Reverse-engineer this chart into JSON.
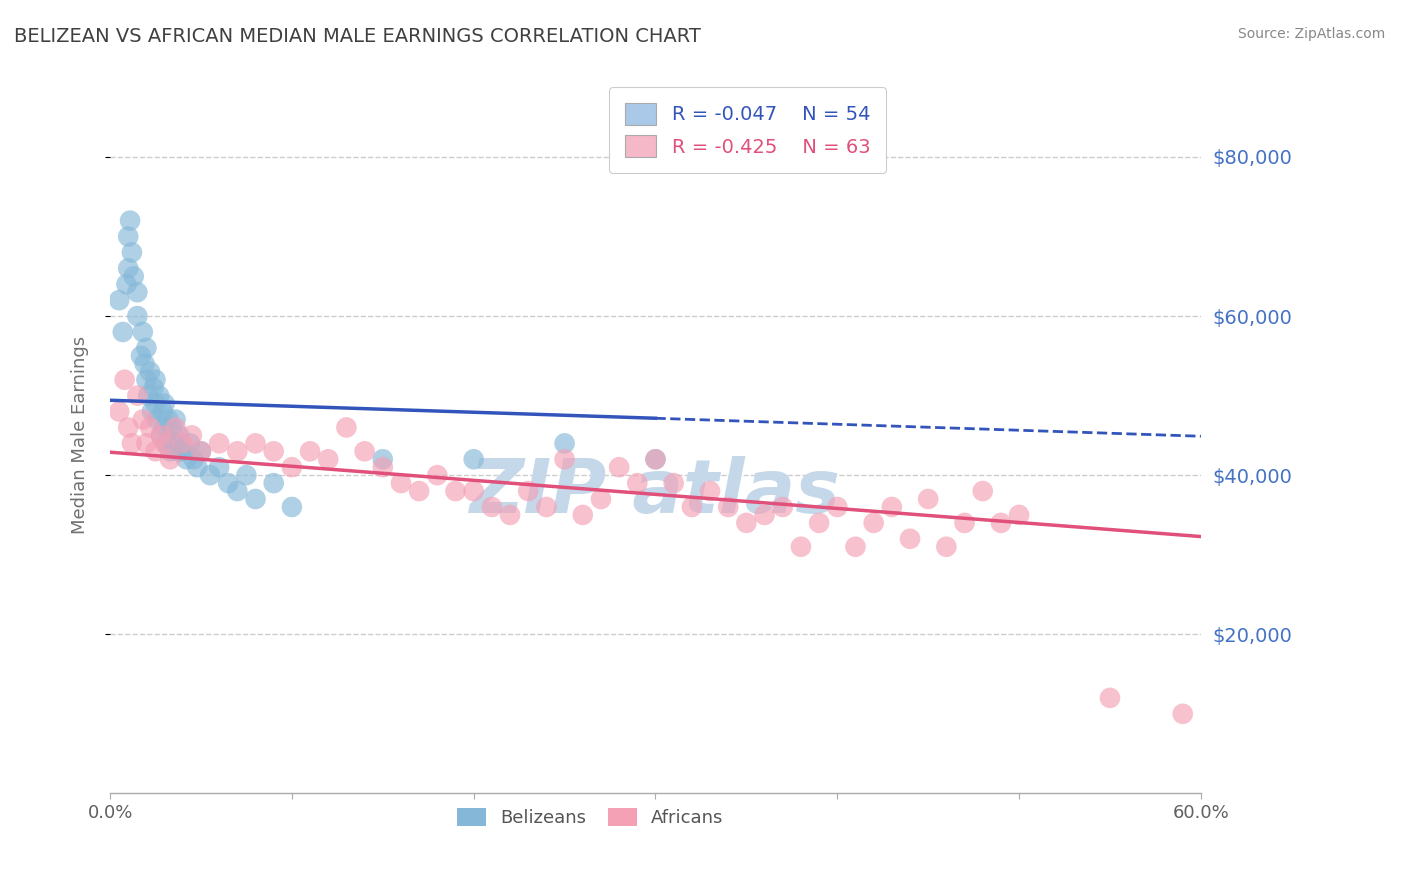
{
  "title": "BELIZEAN VS AFRICAN MEDIAN MALE EARNINGS CORRELATION CHART",
  "source_text": "Source: ZipAtlas.com",
  "ylabel": "Median Male Earnings",
  "xlim": [
    0.0,
    0.6
  ],
  "ylim": [
    0,
    90000
  ],
  "yticks": [
    20000,
    40000,
    60000,
    80000
  ],
  "ytick_labels": [
    "$20,000",
    "$40,000",
    "$60,000",
    "$80,000"
  ],
  "xticks": [
    0.0,
    0.1,
    0.2,
    0.3,
    0.4,
    0.5,
    0.6
  ],
  "xtick_labels": [
    "0.0%",
    "",
    "",
    "",
    "",
    "",
    "60.0%"
  ],
  "belizeans_R": -0.047,
  "belizeans_N": 54,
  "africans_R": -0.425,
  "africans_N": 63,
  "blue_color": "#85b8d8",
  "pink_color": "#f4a0b5",
  "blue_line_color": "#3355bb",
  "pink_line_color": "#e0507a",
  "title_color": "#404040",
  "axis_label_color": "#707070",
  "ytick_color": "#4472c4",
  "watermark_color": "#c5d8ea",
  "legend_blue_fill": "#aac8e8",
  "legend_pink_fill": "#f4b8c8",
  "belizeans_x": [
    0.005,
    0.007,
    0.009,
    0.01,
    0.01,
    0.011,
    0.012,
    0.013,
    0.015,
    0.015,
    0.017,
    0.018,
    0.019,
    0.02,
    0.02,
    0.021,
    0.022,
    0.023,
    0.024,
    0.025,
    0.025,
    0.026,
    0.027,
    0.028,
    0.029,
    0.03,
    0.03,
    0.031,
    0.032,
    0.033,
    0.034,
    0.035,
    0.036,
    0.037,
    0.038,
    0.039,
    0.04,
    0.042,
    0.044,
    0.046,
    0.048,
    0.05,
    0.055,
    0.06,
    0.065,
    0.07,
    0.075,
    0.08,
    0.09,
    0.1,
    0.15,
    0.2,
    0.25,
    0.3
  ],
  "belizeans_y": [
    62000,
    58000,
    64000,
    70000,
    66000,
    72000,
    68000,
    65000,
    63000,
    60000,
    55000,
    58000,
    54000,
    52000,
    56000,
    50000,
    53000,
    48000,
    51000,
    49000,
    52000,
    47000,
    50000,
    45000,
    48000,
    46000,
    49000,
    44000,
    47000,
    43000,
    46000,
    44000,
    47000,
    43000,
    45000,
    44000,
    43000,
    42000,
    44000,
    42000,
    41000,
    43000,
    40000,
    41000,
    39000,
    38000,
    40000,
    37000,
    39000,
    36000,
    42000,
    42000,
    44000,
    42000
  ],
  "africans_x": [
    0.005,
    0.008,
    0.01,
    0.012,
    0.015,
    0.018,
    0.02,
    0.022,
    0.025,
    0.028,
    0.03,
    0.033,
    0.036,
    0.04,
    0.045,
    0.05,
    0.06,
    0.07,
    0.08,
    0.09,
    0.1,
    0.11,
    0.12,
    0.13,
    0.14,
    0.15,
    0.16,
    0.17,
    0.18,
    0.19,
    0.2,
    0.21,
    0.22,
    0.23,
    0.24,
    0.25,
    0.26,
    0.27,
    0.28,
    0.29,
    0.3,
    0.31,
    0.32,
    0.33,
    0.34,
    0.35,
    0.36,
    0.37,
    0.38,
    0.39,
    0.4,
    0.41,
    0.42,
    0.43,
    0.44,
    0.45,
    0.46,
    0.47,
    0.48,
    0.49,
    0.5,
    0.55,
    0.59
  ],
  "africans_y": [
    48000,
    52000,
    46000,
    44000,
    50000,
    47000,
    44000,
    46000,
    43000,
    45000,
    44000,
    42000,
    46000,
    44000,
    45000,
    43000,
    44000,
    43000,
    44000,
    43000,
    41000,
    43000,
    42000,
    46000,
    43000,
    41000,
    39000,
    38000,
    40000,
    38000,
    38000,
    36000,
    35000,
    38000,
    36000,
    42000,
    35000,
    37000,
    41000,
    39000,
    42000,
    39000,
    36000,
    38000,
    36000,
    34000,
    35000,
    36000,
    31000,
    34000,
    36000,
    31000,
    34000,
    36000,
    32000,
    37000,
    31000,
    34000,
    38000,
    34000,
    35000,
    12000,
    10000
  ]
}
